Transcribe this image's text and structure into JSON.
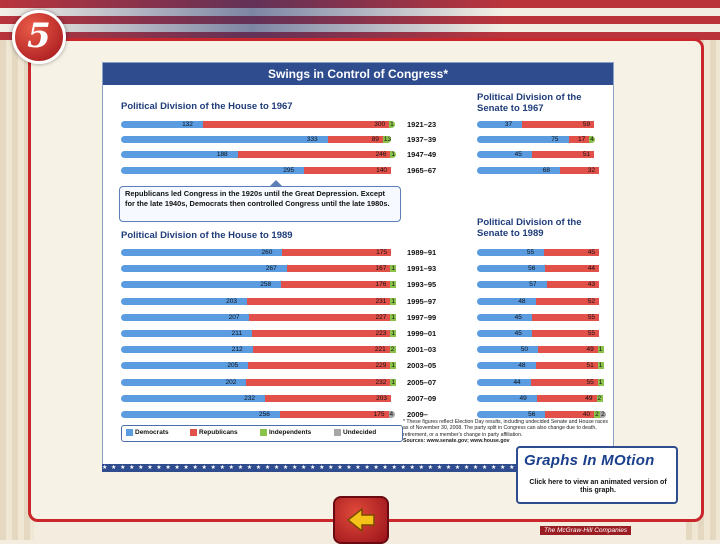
{
  "chapter_number": "5",
  "title": "Swings in Control of Congress*",
  "colors": {
    "democrats": "#5b9be0",
    "republicans": "#e2504a",
    "independents": "#8bc34a",
    "undecided": "#a7a7a7"
  },
  "chart_data": [
    {
      "type": "bar",
      "title": "Political Division of the House to 1967",
      "categories": [
        "1921–23",
        "1937–39",
        "1947–49",
        "1965–67"
      ],
      "series": [
        {
          "name": "Democrats",
          "values": [
            132,
            333,
            188,
            295
          ]
        },
        {
          "name": "Republicans",
          "values": [
            300,
            89,
            246,
            140
          ]
        },
        {
          "name": "Independents",
          "values": [
            1,
            13,
            1,
            0
          ]
        }
      ]
    },
    {
      "type": "bar",
      "title": "Political Division of the Senate to 1967",
      "categories": [
        "1921–23",
        "1937–39",
        "1947–49",
        "1965–67"
      ],
      "series": [
        {
          "name": "Democrats",
          "values": [
            37,
            75,
            45,
            68
          ]
        },
        {
          "name": "Republicans",
          "values": [
            59,
            17,
            51,
            32
          ]
        },
        {
          "name": "Independents",
          "values": [
            0,
            4,
            0,
            0
          ]
        }
      ]
    },
    {
      "type": "bar",
      "title": "Political Division of the House to 1989",
      "categories": [
        "1989–91",
        "1991–93",
        "1993–95",
        "1995–97",
        "1997–99",
        "1999–01",
        "2001–03",
        "2003–05",
        "2005–07",
        "2007–09",
        "2009–"
      ],
      "series": [
        {
          "name": "Democrats",
          "values": [
            260,
            267,
            258,
            203,
            207,
            211,
            212,
            205,
            202,
            232,
            256
          ]
        },
        {
          "name": "Republicans",
          "values": [
            175,
            167,
            176,
            231,
            227,
            223,
            221,
            229,
            232,
            203,
            175
          ]
        },
        {
          "name": "Independents",
          "values": [
            0,
            1,
            1,
            1,
            1,
            1,
            2,
            1,
            1,
            0,
            0
          ]
        },
        {
          "name": "Undecided",
          "values": [
            0,
            0,
            0,
            0,
            0,
            0,
            0,
            0,
            0,
            0,
            4
          ]
        }
      ]
    },
    {
      "type": "bar",
      "title": "Political Division of the Senate to 1989",
      "categories": [
        "1989–91",
        "1991–93",
        "1993–95",
        "1995–97",
        "1997–99",
        "1999–01",
        "2001–03",
        "2003–05",
        "2005–07",
        "2007–09",
        "2009–"
      ],
      "series": [
        {
          "name": "Democrats",
          "values": [
            55,
            56,
            57,
            48,
            45,
            45,
            50,
            48,
            44,
            49,
            56
          ]
        },
        {
          "name": "Republicans",
          "values": [
            45,
            44,
            43,
            52,
            55,
            55,
            49,
            51,
            55,
            49,
            40
          ]
        },
        {
          "name": "Independents",
          "values": [
            0,
            0,
            0,
            0,
            0,
            0,
            1,
            1,
            1,
            2,
            2
          ]
        },
        {
          "name": "Undecided",
          "values": [
            0,
            0,
            0,
            0,
            0,
            0,
            0,
            0,
            0,
            0,
            2
          ]
        }
      ]
    }
  ],
  "note": "Republicans led Congress in the 1920s until the Great Depression. Except for the late 1940s, Democrats then controlled Congress until the late 1980s.",
  "legend": [
    "Democrats",
    "Republicans",
    "Independents",
    "Undecided"
  ],
  "footnote": "* These figures reflect Election Day results, including undecided Senate and House races as of November 30, 2008. The party split in Congress can also change due to death, retirement, or a member's change in party affiliation.",
  "sources": "Sources: www.senate.gov; www.house.gov",
  "graphs_in_motion": {
    "logo": "Graphs In MOtion",
    "caption": "Click here to view an animated version of this graph."
  },
  "publisher": "The McGraw-Hill Companies"
}
